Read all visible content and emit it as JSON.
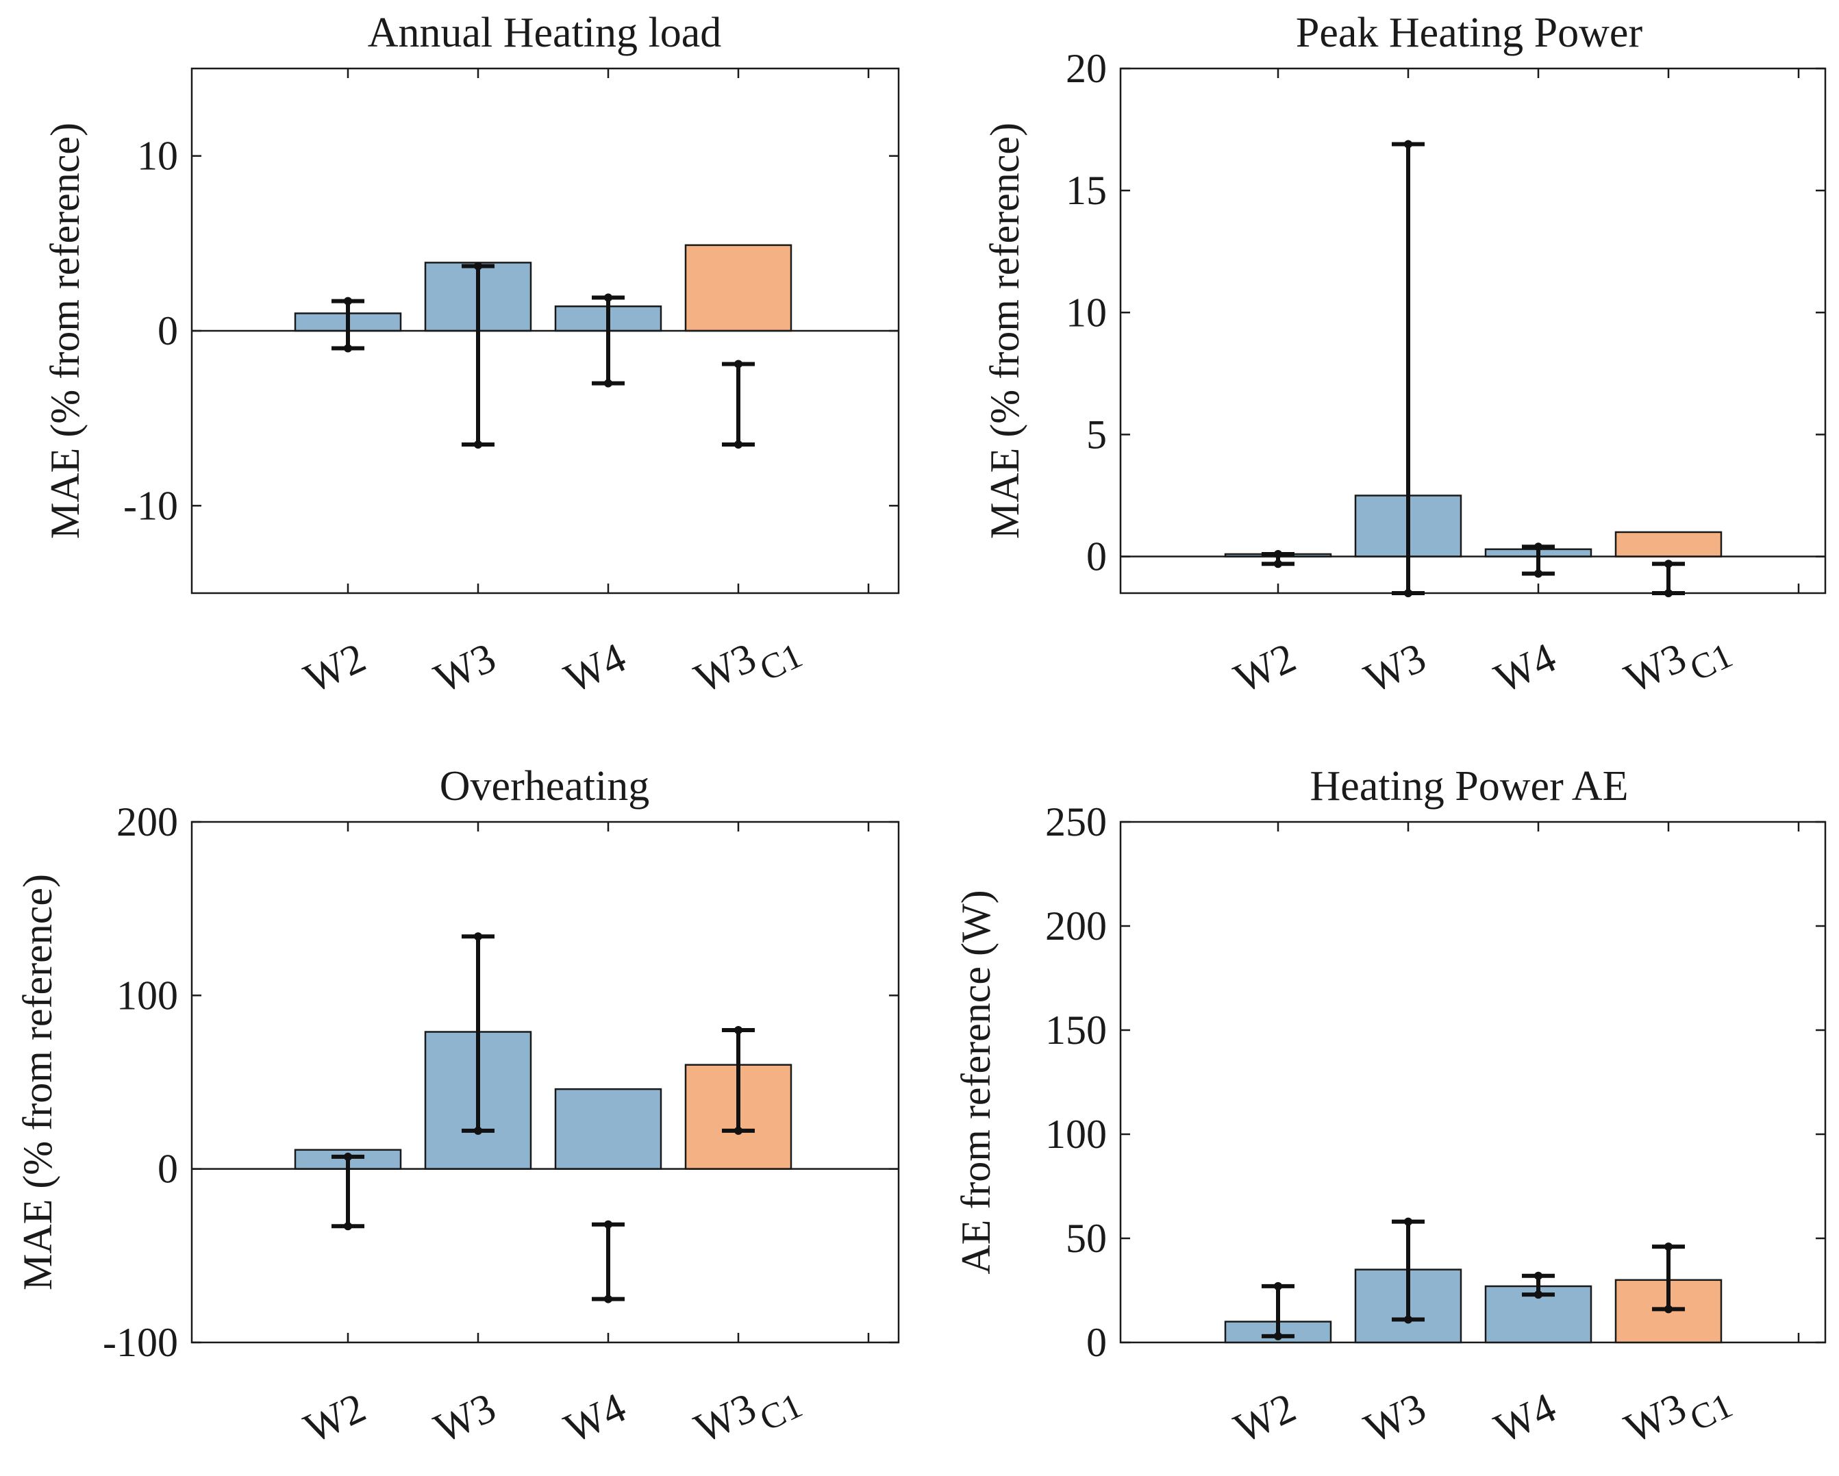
{
  "chart_data": [
    {
      "type": "bar",
      "title": "Annual Heating load",
      "ylabel": "MAE (% from reference)",
      "categories": [
        "W2",
        "W3",
        "W4",
        "W3"
      ],
      "category_subscripts": [
        "",
        "",
        "",
        "C1"
      ],
      "values": [
        1.0,
        3.9,
        1.4,
        4.9
      ],
      "err_low": [
        -1.0,
        -6.5,
        -3.0,
        -6.5
      ],
      "err_high": [
        1.7,
        3.7,
        1.9,
        -1.9
      ],
      "bar_colors": [
        "#8fb4d0",
        "#8fb4d0",
        "#8fb4d0",
        "#f4b183"
      ],
      "ylim": [
        -15,
        15
      ],
      "yticks": [
        10,
        0,
        -10
      ],
      "ytick_labels": [
        "10",
        "0",
        "-10"
      ]
    },
    {
      "type": "bar",
      "title": "Peak Heating Power",
      "ylabel": "MAE (% from reference)",
      "categories": [
        "W2",
        "W3",
        "W4",
        "W3"
      ],
      "category_subscripts": [
        "",
        "",
        "",
        "C1"
      ],
      "values": [
        0.1,
        2.5,
        0.3,
        1.0
      ],
      "err_low": [
        -0.3,
        -1.5,
        -0.7,
        -1.5
      ],
      "err_high": [
        0.1,
        16.9,
        0.4,
        -0.3
      ],
      "bar_colors": [
        "#8fb4d0",
        "#8fb4d0",
        "#8fb4d0",
        "#f4b183"
      ],
      "ylim": [
        -1.5,
        20
      ],
      "yticks": [
        20,
        15,
        10,
        5,
        0
      ],
      "ytick_labels": [
        "20",
        "15",
        "10",
        "5",
        "0"
      ]
    },
    {
      "type": "bar",
      "title": "Overheating",
      "ylabel": "MAE (% from reference)",
      "categories": [
        "W2",
        "W3",
        "W4",
        "W3"
      ],
      "category_subscripts": [
        "",
        "",
        "",
        "C1"
      ],
      "values": [
        11,
        79,
        46,
        60
      ],
      "err_low": [
        -33,
        22,
        -75,
        22
      ],
      "err_high": [
        7,
        134,
        -32,
        80
      ],
      "bar_colors": [
        "#8fb4d0",
        "#8fb4d0",
        "#8fb4d0",
        "#f4b183"
      ],
      "ylim": [
        -100,
        200
      ],
      "yticks": [
        200,
        100,
        0,
        -100
      ],
      "ytick_labels": [
        "200",
        "100",
        "0",
        "-100"
      ]
    },
    {
      "type": "bar",
      "title": "Heating Power AE",
      "ylabel": "AE from reference (W)",
      "categories": [
        "W2",
        "W3",
        "W4",
        "W3"
      ],
      "category_subscripts": [
        "",
        "",
        "",
        "C1"
      ],
      "values": [
        10,
        35,
        27,
        30
      ],
      "err_low": [
        3,
        11,
        23,
        16
      ],
      "err_high": [
        27,
        58,
        32,
        46
      ],
      "bar_colors": [
        "#8fb4d0",
        "#8fb4d0",
        "#8fb4d0",
        "#f4b183"
      ],
      "ylim": [
        0,
        250
      ],
      "yticks": [
        250,
        200,
        150,
        100,
        50,
        0
      ],
      "ytick_labels": [
        "250",
        "200",
        "150",
        "100",
        "50",
        "0"
      ]
    }
  ]
}
